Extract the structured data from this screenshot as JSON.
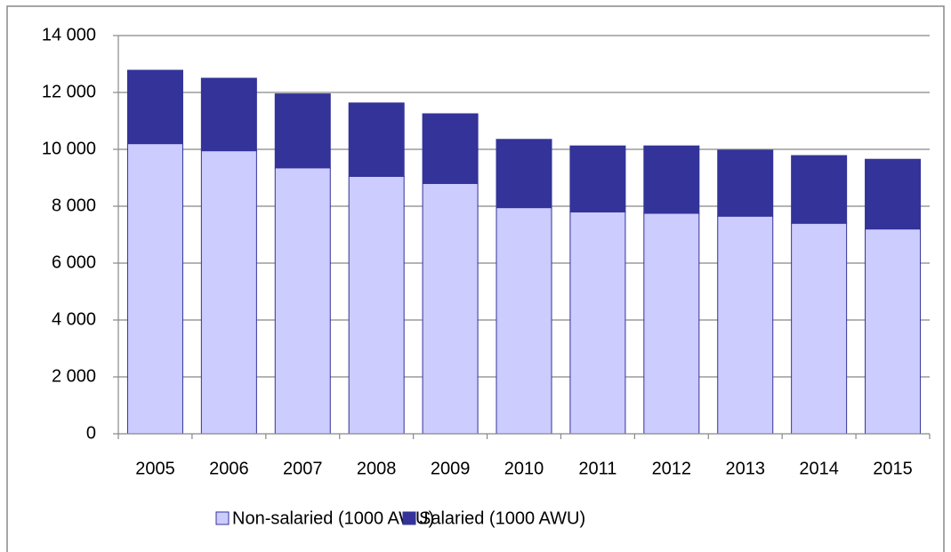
{
  "chart_data": {
    "type": "stacked_bar",
    "categories": [
      "2005",
      "2006",
      "2007",
      "2008",
      "2009",
      "2010",
      "2011",
      "2012",
      "2013",
      "2014",
      "2015"
    ],
    "series": [
      {
        "name": "Non-salaried (1000 AWU)",
        "color": "#ccccff",
        "values": [
          10200,
          9950,
          9350,
          9050,
          8800,
          7950,
          7800,
          7750,
          7650,
          7400,
          7200
        ]
      },
      {
        "name": "Salaried (1000 AWU)",
        "color": "#333399",
        "values": [
          2580,
          2550,
          2600,
          2580,
          2450,
          2400,
          2320,
          2370,
          2320,
          2380,
          2450
        ]
      }
    ],
    "ylim": [
      0,
      14000
    ],
    "yticks": [
      0,
      {
        "value": 2000,
        "label": "2 000"
      },
      {
        "value": 4000,
        "label": "4 000"
      },
      {
        "value": 6000,
        "label": "6 000"
      },
      {
        "value": 8000,
        "label": "8 000"
      },
      {
        "value": 10000,
        "label": "10 000"
      },
      {
        "value": 12000,
        "label": "12 000"
      },
      {
        "value": 14000,
        "label": "14 000"
      }
    ],
    "grid": true,
    "legend": "bottom"
  }
}
